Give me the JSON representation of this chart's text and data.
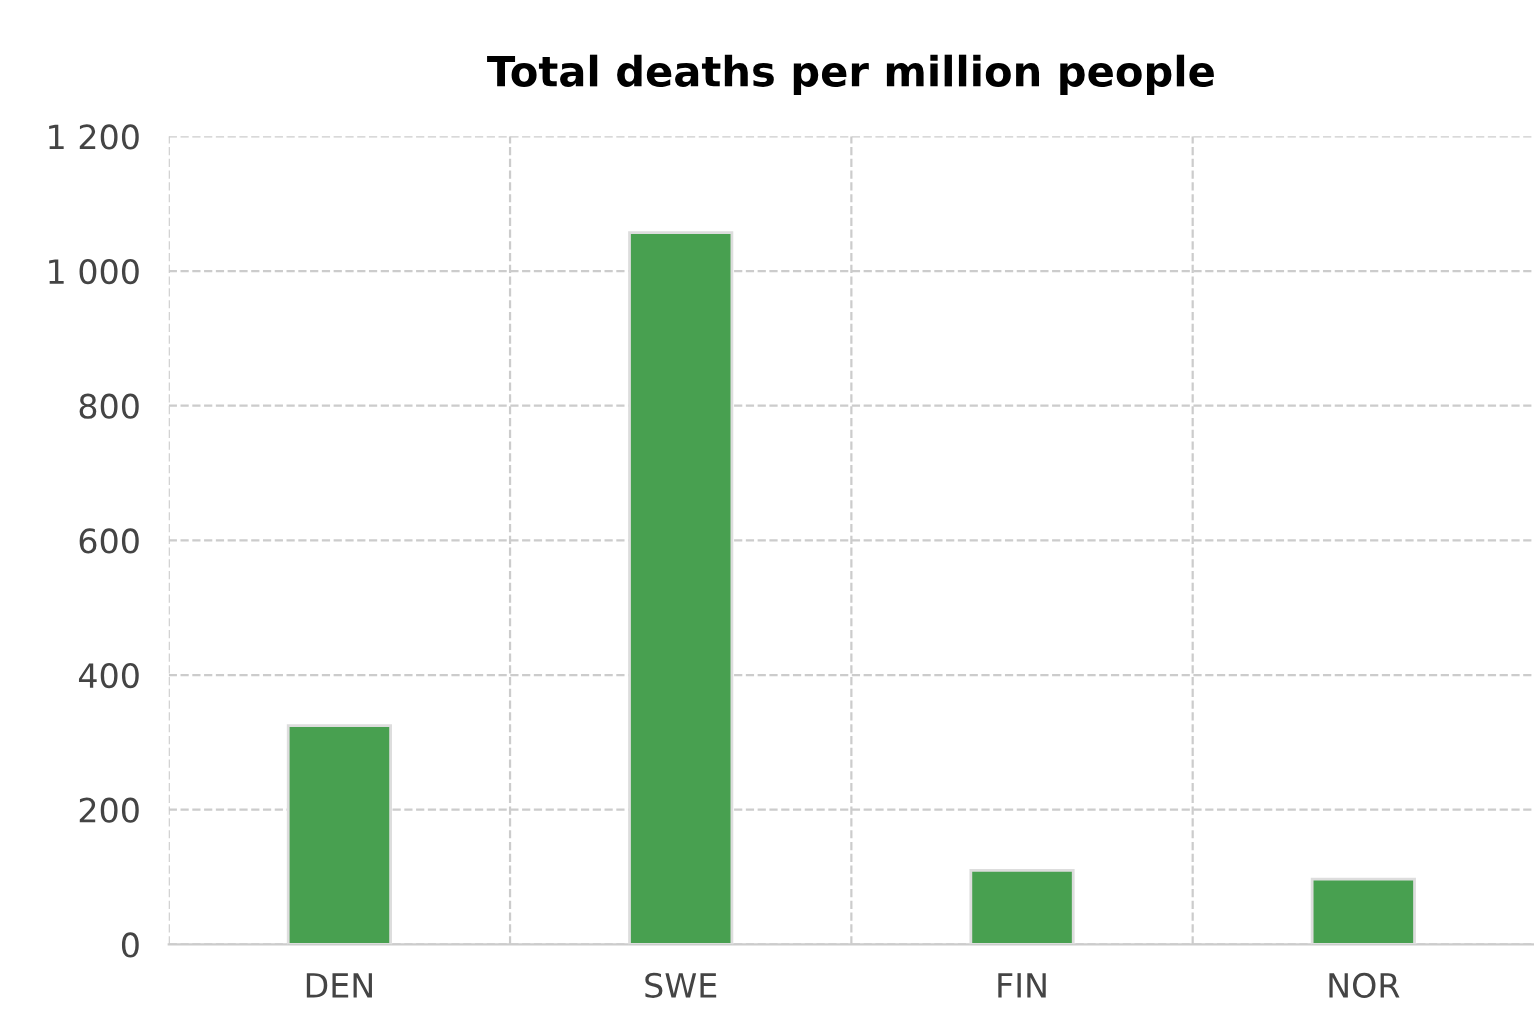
{
  "chart_data": {
    "type": "bar",
    "title": "Total deaths per million people",
    "categories": [
      "DEN",
      "SWE",
      "FIN",
      "NOR"
    ],
    "values": [
      325,
      1057,
      110,
      97
    ],
    "color": "#48a050",
    "ylim": [
      0,
      1200
    ],
    "yticks": [
      0,
      200,
      400,
      600,
      800,
      {
        "value": 1000,
        "label": "1 000"
      },
      {
        "value": 1200,
        "label": "1 200"
      }
    ],
    "grid": true
  }
}
